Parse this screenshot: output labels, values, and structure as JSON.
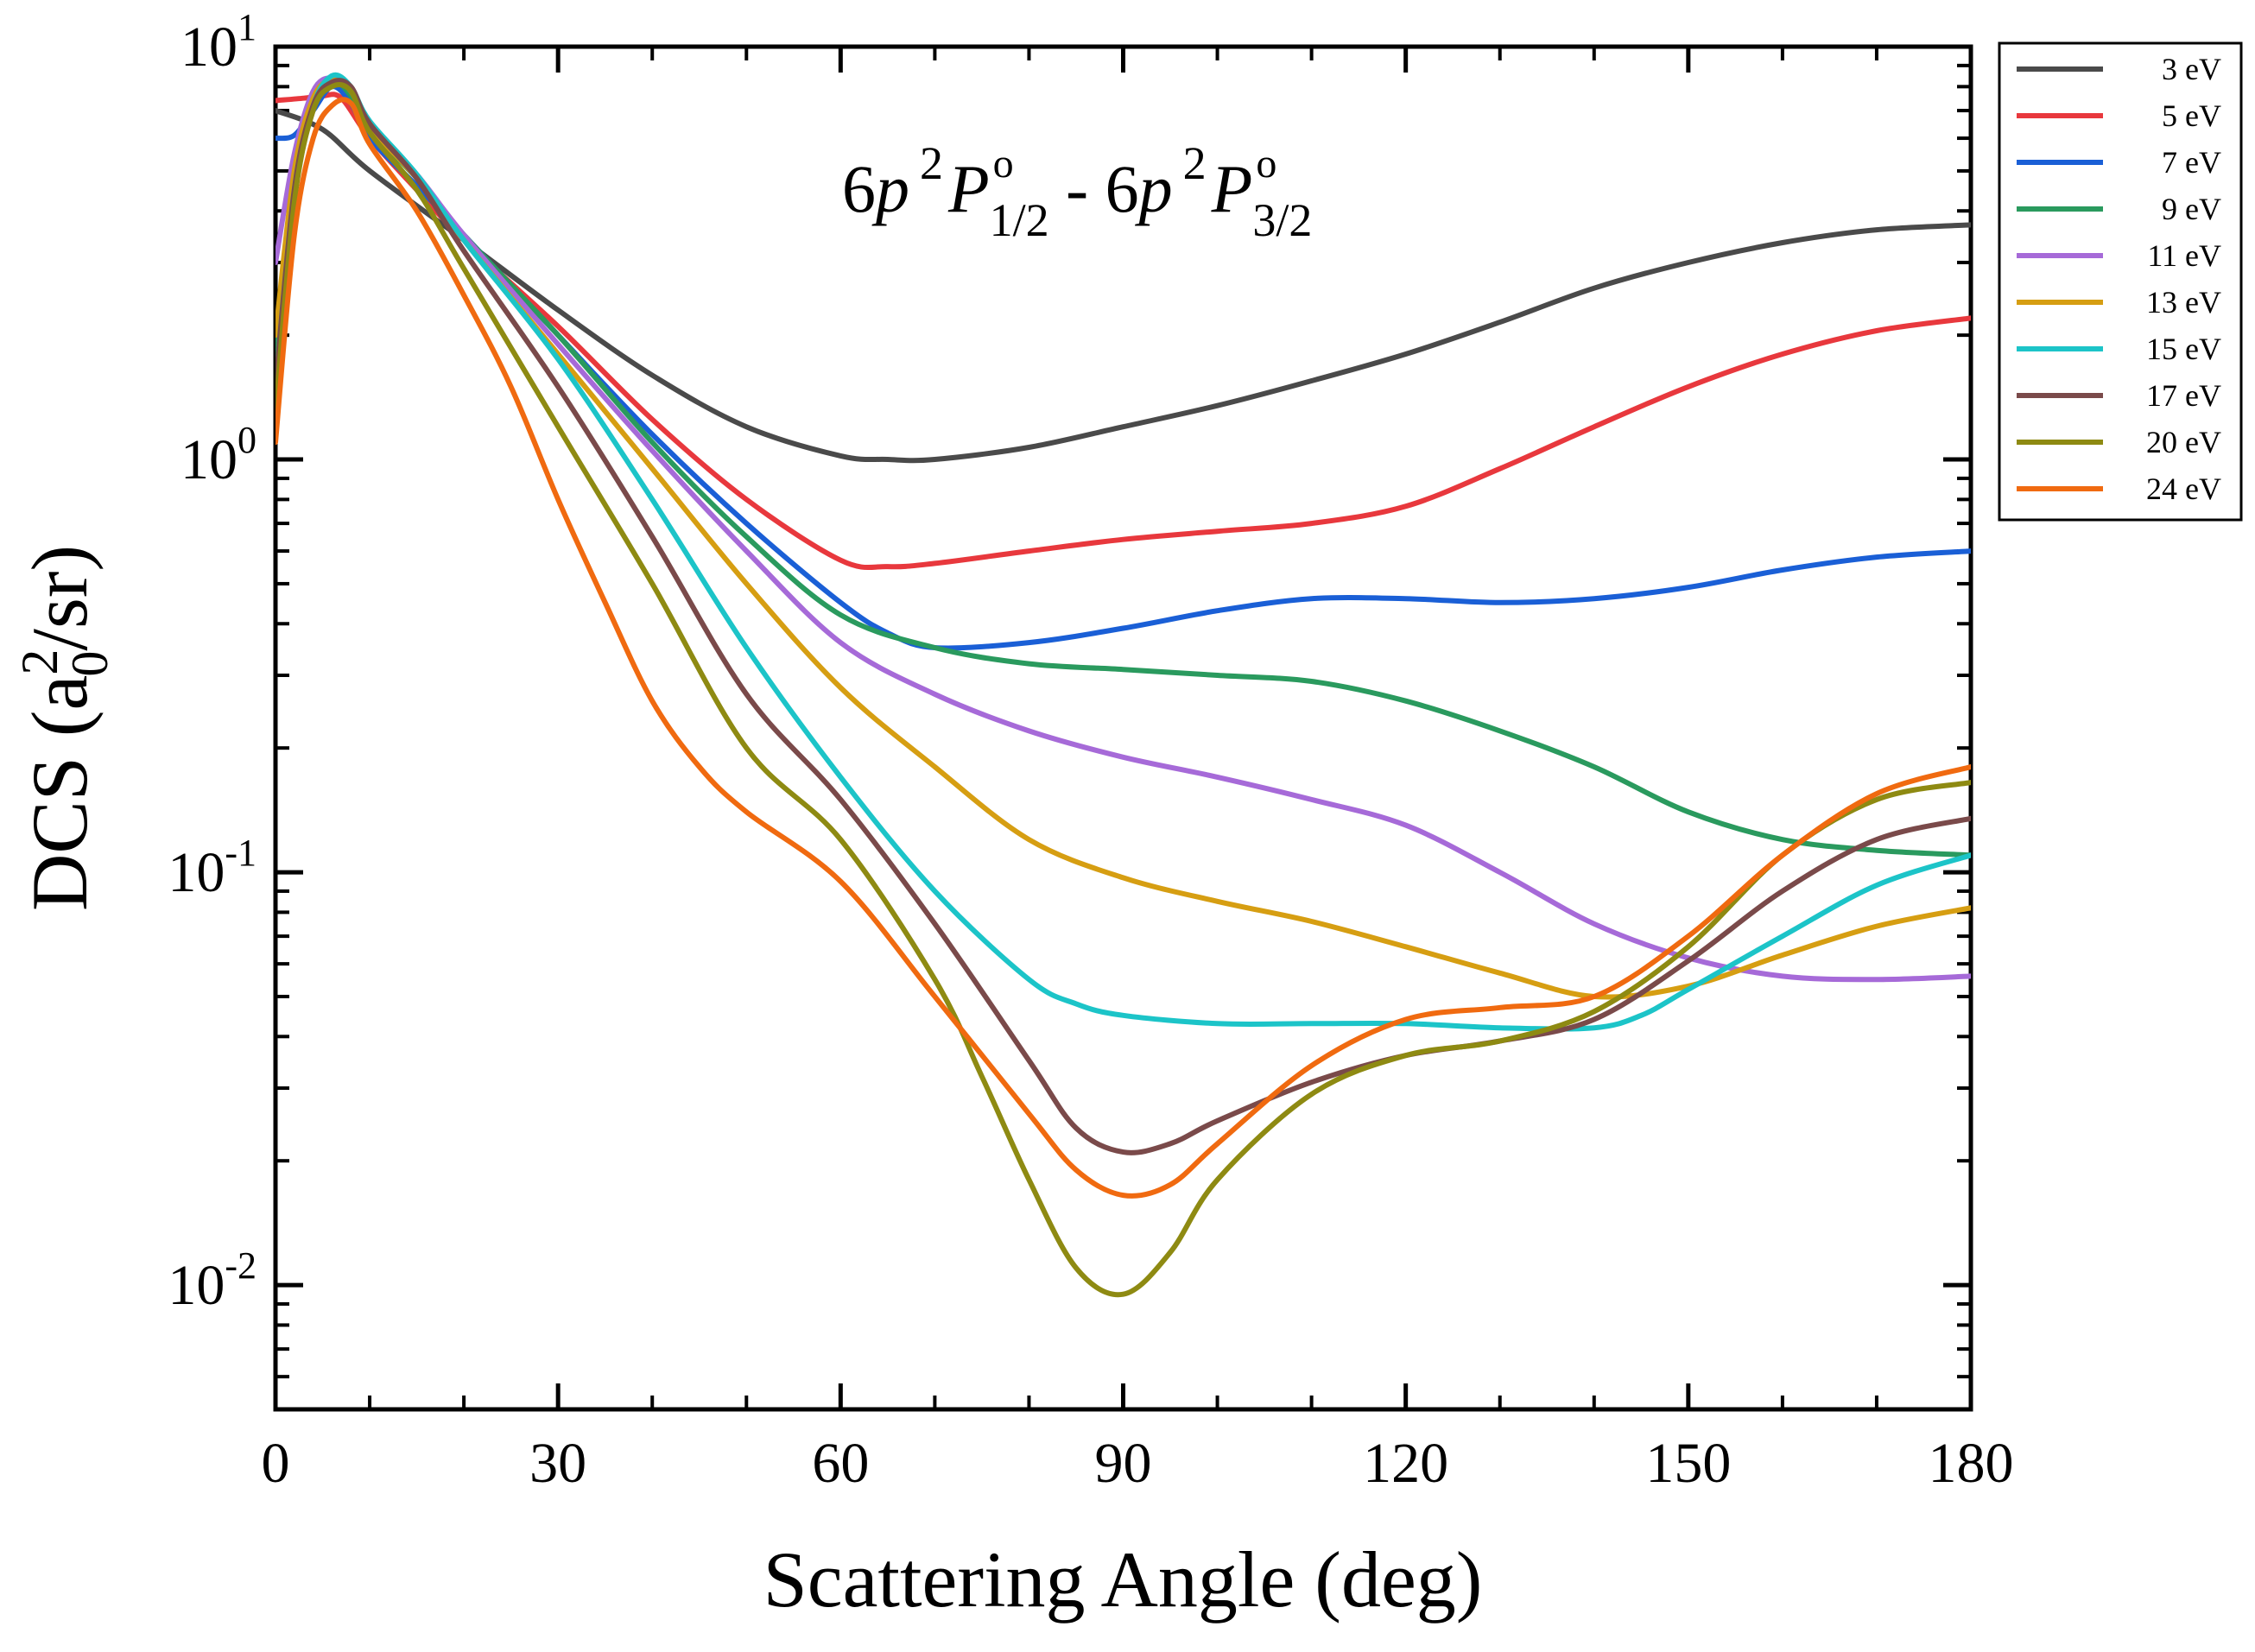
{
  "chart_data": {
    "type": "line",
    "title": "6p ²P°1/2 - 6p ²P°3/2",
    "title_parts": {
      "p1_prefix": "6",
      "p1_orb": "p",
      "p1_mult": "2",
      "p1_term": "P",
      "p1_parity": "o",
      "p1_j": "1/2",
      "separator": " - ",
      "p2_prefix": "6",
      "p2_orb": "p",
      "p2_mult": "2",
      "p2_term": "P",
      "p2_parity": "o",
      "p2_j": "3/2"
    },
    "xlabel": "Scattering Angle (deg)",
    "ylabel": "DCS (a₀²/sr)",
    "ylabel_parts": {
      "pre": "DCS (a",
      "sup": "2",
      "sub": "0",
      "post": "/sr)"
    },
    "xlim": [
      0,
      180
    ],
    "ylim": [
      0.005,
      10
    ],
    "yscale": "log",
    "grid": false,
    "legend_position": "outside-right",
    "x_ticks": [
      {
        "value": 0,
        "label": "0"
      },
      {
        "value": 30,
        "label": "30"
      },
      {
        "value": 60,
        "label": "60"
      },
      {
        "value": 90,
        "label": "90"
      },
      {
        "value": 120,
        "label": "120"
      },
      {
        "value": 150,
        "label": "150"
      },
      {
        "value": 180,
        "label": "180"
      }
    ],
    "y_ticks": [
      {
        "value": 10,
        "base": "10",
        "exp": "1"
      },
      {
        "value": 1,
        "base": "10",
        "exp": "0"
      },
      {
        "value": 0.1,
        "base": "10",
        "exp": "-1"
      },
      {
        "value": 0.01,
        "base": "10",
        "exp": "-2"
      }
    ],
    "series": [
      {
        "name": "3 eV",
        "color": "#4a4a4a",
        "points": [
          [
            0,
            7.0
          ],
          [
            5,
            6.3
          ],
          [
            10,
            5.0
          ],
          [
            20,
            3.4
          ],
          [
            30,
            2.3
          ],
          [
            40,
            1.6
          ],
          [
            50,
            1.2
          ],
          [
            60,
            1.02
          ],
          [
            65,
            1.0
          ],
          [
            70,
            1.0
          ],
          [
            80,
            1.07
          ],
          [
            90,
            1.2
          ],
          [
            100,
            1.35
          ],
          [
            110,
            1.55
          ],
          [
            120,
            1.8
          ],
          [
            130,
            2.15
          ],
          [
            140,
            2.6
          ],
          [
            150,
            3.0
          ],
          [
            160,
            3.35
          ],
          [
            170,
            3.6
          ],
          [
            180,
            3.7
          ]
        ]
      },
      {
        "name": "5 eV",
        "color": "#e8383d",
        "points": [
          [
            0,
            7.4
          ],
          [
            3,
            7.5
          ],
          [
            5,
            7.6
          ],
          [
            7,
            7.5
          ],
          [
            10,
            6.0
          ],
          [
            15,
            4.5
          ],
          [
            20,
            3.4
          ],
          [
            30,
            2.1
          ],
          [
            40,
            1.25
          ],
          [
            50,
            0.8
          ],
          [
            60,
            0.57
          ],
          [
            65,
            0.55
          ],
          [
            70,
            0.56
          ],
          [
            80,
            0.6
          ],
          [
            90,
            0.64
          ],
          [
            100,
            0.67
          ],
          [
            110,
            0.7
          ],
          [
            120,
            0.77
          ],
          [
            130,
            0.95
          ],
          [
            140,
            1.2
          ],
          [
            150,
            1.5
          ],
          [
            160,
            1.8
          ],
          [
            170,
            2.05
          ],
          [
            180,
            2.2
          ]
        ]
      },
      {
        "name": "7 eV",
        "color": "#1a5fd6",
        "points": [
          [
            0,
            6.0
          ],
          [
            2,
            6.1
          ],
          [
            4,
            7.0
          ],
          [
            6,
            8.0
          ],
          [
            8,
            7.3
          ],
          [
            10,
            6.0
          ],
          [
            15,
            4.6
          ],
          [
            20,
            3.5
          ],
          [
            30,
            2.0
          ],
          [
            40,
            1.15
          ],
          [
            50,
            0.7
          ],
          [
            60,
            0.45
          ],
          [
            65,
            0.38
          ],
          [
            70,
            0.35
          ],
          [
            80,
            0.36
          ],
          [
            90,
            0.39
          ],
          [
            100,
            0.43
          ],
          [
            110,
            0.46
          ],
          [
            120,
            0.46
          ],
          [
            130,
            0.45
          ],
          [
            140,
            0.46
          ],
          [
            150,
            0.49
          ],
          [
            160,
            0.54
          ],
          [
            170,
            0.58
          ],
          [
            180,
            0.6
          ]
        ]
      },
      {
        "name": "9 eV",
        "color": "#2a9a5e",
        "points": [
          [
            0,
            1.8
          ],
          [
            2,
            5.0
          ],
          [
            4,
            7.5
          ],
          [
            6,
            8.3
          ],
          [
            8,
            7.6
          ],
          [
            10,
            6.3
          ],
          [
            15,
            4.8
          ],
          [
            20,
            3.5
          ],
          [
            30,
            2.0
          ],
          [
            40,
            1.1
          ],
          [
            50,
            0.65
          ],
          [
            60,
            0.42
          ],
          [
            70,
            0.35
          ],
          [
            80,
            0.32
          ],
          [
            90,
            0.31
          ],
          [
            100,
            0.3
          ],
          [
            110,
            0.29
          ],
          [
            120,
            0.26
          ],
          [
            130,
            0.22
          ],
          [
            140,
            0.18
          ],
          [
            150,
            0.14
          ],
          [
            160,
            0.12
          ],
          [
            170,
            0.113
          ],
          [
            180,
            0.11
          ]
        ]
      },
      {
        "name": "11 eV",
        "color": "#a66ad8",
        "points": [
          [
            0,
            3.0
          ],
          [
            2,
            5.5
          ],
          [
            4,
            7.8
          ],
          [
            6,
            8.4
          ],
          [
            8,
            7.8
          ],
          [
            10,
            6.5
          ],
          [
            15,
            4.9
          ],
          [
            20,
            3.5
          ],
          [
            30,
            1.9
          ],
          [
            40,
            1.05
          ],
          [
            50,
            0.6
          ],
          [
            60,
            0.36
          ],
          [
            70,
            0.27
          ],
          [
            80,
            0.22
          ],
          [
            90,
            0.19
          ],
          [
            100,
            0.17
          ],
          [
            110,
            0.15
          ],
          [
            120,
            0.13
          ],
          [
            130,
            0.1
          ],
          [
            140,
            0.075
          ],
          [
            150,
            0.062
          ],
          [
            160,
            0.056
          ],
          [
            170,
            0.055
          ],
          [
            180,
            0.056
          ]
        ]
      },
      {
        "name": "13 eV",
        "color": "#d69e12",
        "points": [
          [
            0,
            2.0
          ],
          [
            2,
            5.0
          ],
          [
            4,
            7.5
          ],
          [
            6,
            8.3
          ],
          [
            8,
            7.8
          ],
          [
            10,
            6.4
          ],
          [
            15,
            4.8
          ],
          [
            20,
            3.4
          ],
          [
            30,
            1.8
          ],
          [
            40,
            0.95
          ],
          [
            50,
            0.5
          ],
          [
            60,
            0.28
          ],
          [
            70,
            0.18
          ],
          [
            80,
            0.12
          ],
          [
            90,
            0.097
          ],
          [
            100,
            0.085
          ],
          [
            110,
            0.076
          ],
          [
            120,
            0.066
          ],
          [
            130,
            0.057
          ],
          [
            140,
            0.05
          ],
          [
            150,
            0.053
          ],
          [
            160,
            0.063
          ],
          [
            170,
            0.074
          ],
          [
            180,
            0.082
          ]
        ]
      },
      {
        "name": "15 eV",
        "color": "#1cc4c8",
        "points": [
          [
            0,
            1.5
          ],
          [
            2,
            4.5
          ],
          [
            4,
            7.2
          ],
          [
            6,
            8.5
          ],
          [
            8,
            8.0
          ],
          [
            10,
            6.6
          ],
          [
            15,
            4.9
          ],
          [
            20,
            3.4
          ],
          [
            30,
            1.75
          ],
          [
            40,
            0.8
          ],
          [
            50,
            0.35
          ],
          [
            60,
            0.17
          ],
          [
            70,
            0.09
          ],
          [
            80,
            0.055
          ],
          [
            85,
            0.048
          ],
          [
            90,
            0.045
          ],
          [
            100,
            0.043
          ],
          [
            110,
            0.043
          ],
          [
            120,
            0.043
          ],
          [
            130,
            0.042
          ],
          [
            140,
            0.042
          ],
          [
            145,
            0.045
          ],
          [
            150,
            0.052
          ],
          [
            160,
            0.07
          ],
          [
            170,
            0.093
          ],
          [
            180,
            0.11
          ]
        ]
      },
      {
        "name": "17 eV",
        "color": "#7a4a4a",
        "points": [
          [
            0,
            1.5
          ],
          [
            2,
            4.5
          ],
          [
            4,
            7.2
          ],
          [
            6,
            8.2
          ],
          [
            8,
            8.0
          ],
          [
            10,
            6.5
          ],
          [
            15,
            4.8
          ],
          [
            20,
            3.2
          ],
          [
            30,
            1.5
          ],
          [
            40,
            0.65
          ],
          [
            50,
            0.27
          ],
          [
            60,
            0.15
          ],
          [
            70,
            0.075
          ],
          [
            80,
            0.035
          ],
          [
            85,
            0.024
          ],
          [
            90,
            0.021
          ],
          [
            95,
            0.022
          ],
          [
            100,
            0.025
          ],
          [
            110,
            0.031
          ],
          [
            120,
            0.036
          ],
          [
            130,
            0.039
          ],
          [
            140,
            0.044
          ],
          [
            150,
            0.061
          ],
          [
            160,
            0.09
          ],
          [
            170,
            0.12
          ],
          [
            180,
            0.135
          ]
        ]
      },
      {
        "name": "20 eV",
        "color": "#8e8a12",
        "points": [
          [
            0,
            1.3
          ],
          [
            2,
            4.2
          ],
          [
            4,
            7.0
          ],
          [
            6,
            8.0
          ],
          [
            8,
            7.8
          ],
          [
            10,
            6.2
          ],
          [
            15,
            4.5
          ],
          [
            20,
            2.9
          ],
          [
            30,
            1.2
          ],
          [
            40,
            0.5
          ],
          [
            50,
            0.2
          ],
          [
            60,
            0.12
          ],
          [
            70,
            0.055
          ],
          [
            75,
            0.032
          ],
          [
            80,
            0.018
          ],
          [
            85,
            0.011
          ],
          [
            90,
            0.0095
          ],
          [
            95,
            0.012
          ],
          [
            100,
            0.018
          ],
          [
            110,
            0.029
          ],
          [
            120,
            0.036
          ],
          [
            130,
            0.039
          ],
          [
            140,
            0.046
          ],
          [
            150,
            0.066
          ],
          [
            160,
            0.11
          ],
          [
            170,
            0.15
          ],
          [
            180,
            0.165
          ]
        ]
      },
      {
        "name": "24 eV",
        "color": "#f06a10",
        "points": [
          [
            0,
            1.1
          ],
          [
            2,
            3.5
          ],
          [
            4,
            6.0
          ],
          [
            6,
            7.2
          ],
          [
            8,
            7.3
          ],
          [
            10,
            5.8
          ],
          [
            15,
            4.0
          ],
          [
            20,
            2.5
          ],
          [
            25,
            1.5
          ],
          [
            30,
            0.8
          ],
          [
            35,
            0.45
          ],
          [
            40,
            0.26
          ],
          [
            45,
            0.18
          ],
          [
            50,
            0.14
          ],
          [
            60,
            0.095
          ],
          [
            70,
            0.05
          ],
          [
            80,
            0.026
          ],
          [
            85,
            0.019
          ],
          [
            90,
            0.0165
          ],
          [
            95,
            0.0175
          ],
          [
            100,
            0.022
          ],
          [
            110,
            0.034
          ],
          [
            120,
            0.044
          ],
          [
            130,
            0.047
          ],
          [
            140,
            0.05
          ],
          [
            150,
            0.07
          ],
          [
            160,
            0.11
          ],
          [
            170,
            0.155
          ],
          [
            180,
            0.18
          ]
        ]
      }
    ]
  }
}
